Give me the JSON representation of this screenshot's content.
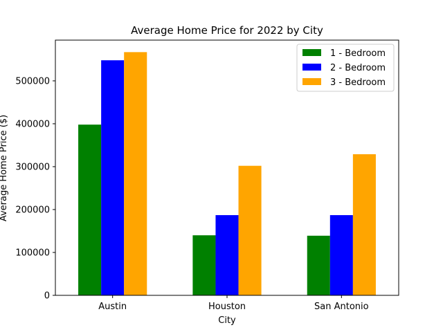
{
  "chart_data": {
    "type": "bar",
    "title": "Average Home Price for 2022 by City",
    "xlabel": "City",
    "ylabel": "Average Home Price ($)",
    "categories": [
      "Austin",
      "Houston",
      "San Antonio"
    ],
    "series": [
      {
        "name": "1 - Bedroom",
        "color": "#008000",
        "values": [
          398000,
          140000,
          139000
        ]
      },
      {
        "name": "2 - Bedroom",
        "color": "#0000ff",
        "values": [
          548000,
          187000,
          187000
        ]
      },
      {
        "name": "3 - Bedroom",
        "color": "#ffa500",
        "values": [
          567000,
          302000,
          329000
        ]
      }
    ],
    "ylim": [
      0,
      595000
    ],
    "yticks": [
      0,
      100000,
      200000,
      300000,
      400000,
      500000
    ],
    "ytick_labels": [
      "0",
      "100000",
      "200000",
      "300000",
      "400000",
      "500000"
    ],
    "grid": false,
    "legend_position": "top-right"
  }
}
